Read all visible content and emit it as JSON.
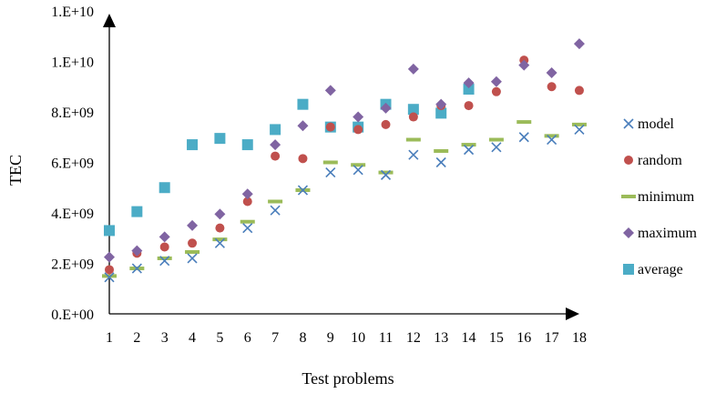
{
  "chart_data": {
    "type": "scatter",
    "title": "",
    "xlabel": "Test problems",
    "ylabel": "TEC",
    "categories": [
      "1",
      "2",
      "3",
      "4",
      "5",
      "6",
      "7",
      "8",
      "9",
      "10",
      "11",
      "12",
      "13",
      "14",
      "15",
      "16",
      "17",
      "18"
    ],
    "y_ticks": [
      "0.E+00",
      "2.E+09",
      "4.E+09",
      "6.E+09",
      "8.E+09",
      "1.E+10",
      "1.E+10"
    ],
    "ylim": [
      0,
      12000000000
    ],
    "grid": false,
    "legend_position": "right",
    "series": [
      {
        "name": "model",
        "marker": "x",
        "color": "#4a7ebb",
        "values": [
          1450000000.0,
          1800000000.0,
          2100000000.0,
          2200000000.0,
          2800000000.0,
          3400000000.0,
          4100000000.0,
          4900000000.0,
          5600000000.0,
          5700000000.0,
          5500000000.0,
          6300000000.0,
          6000000000.0,
          6500000000.0,
          6600000000.0,
          7000000000.0,
          6900000000.0,
          7300000000.0
        ]
      },
      {
        "name": "random",
        "marker": "circle",
        "color": "#c0504d",
        "values": [
          1750000000.0,
          2400000000.0,
          2650000000.0,
          2800000000.0,
          3400000000.0,
          4450000000.0,
          6250000000.0,
          6150000000.0,
          7400000000.0,
          7300000000.0,
          7500000000.0,
          7800000000.0,
          8250000000.0,
          8250000000.0,
          8800000000.0,
          10050000000.0,
          9000000000.0,
          8850000000.0
        ]
      },
      {
        "name": "minimum",
        "marker": "dash",
        "color": "#9bbb59",
        "values": [
          1500000000.0,
          1800000000.0,
          2200000000.0,
          2450000000.0,
          2950000000.0,
          3650000000.0,
          4450000000.0,
          4900000000.0,
          6000000000.0,
          5900000000.0,
          5600000000.0,
          6900000000.0,
          6450000000.0,
          6700000000.0,
          6900000000.0,
          7600000000.0,
          7050000000.0,
          7500000000.0
        ]
      },
      {
        "name": "maximum",
        "marker": "diamond",
        "color": "#8064a2",
        "values": [
          2250000000.0,
          2500000000.0,
          3050000000.0,
          3500000000.0,
          3950000000.0,
          4750000000.0,
          6700000000.0,
          7450000000.0,
          8850000000.0,
          7800000000.0,
          8150000000.0,
          9700000000.0,
          8300000000.0,
          9150000000.0,
          9200000000.0,
          9850000000.0,
          9550000000.0,
          10700000000.0
        ]
      },
      {
        "name": "average",
        "marker": "square",
        "color": "#4bacc6",
        "values": [
          3300000000.0,
          4050000000.0,
          5000000000.0,
          6700000000.0,
          6950000000.0,
          6700000000.0,
          7300000000.0,
          8300000000.0,
          7400000000.0,
          7400000000.0,
          8300000000.0,
          8100000000.0,
          7950000000.0,
          8900000000.0,
          null,
          null,
          null,
          null
        ]
      }
    ]
  }
}
